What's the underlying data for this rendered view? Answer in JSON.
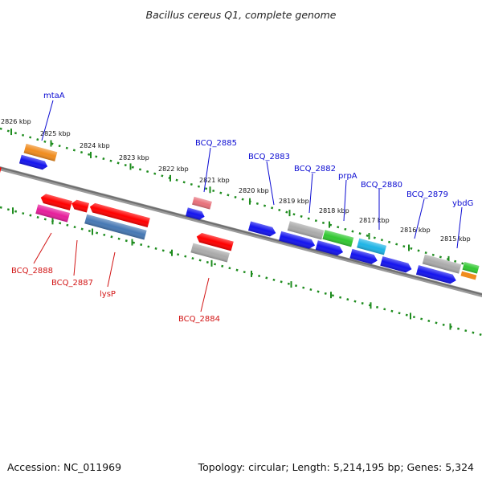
{
  "title": "Bacillus cereus Q1, complete genome",
  "footer": {
    "accession": "Accession: NC_011969",
    "summary": "Topology: circular; Length: 5,214,195 bp; Genes: 5,324"
  },
  "colors": {
    "backbone": "#777777",
    "tick": "#1e8c1e",
    "forward_label": "#0a0ad2",
    "reverse_label": "#d21414"
  },
  "kbp_labels": [
    "2826 kbp",
    "2825 kbp",
    "2824 kbp",
    "2823 kbp",
    "2822 kbp",
    "2821 kbp",
    "2820 kbp",
    "2819 kbp",
    "2818 kbp",
    "2817 kbp",
    "2816 kbp",
    "2815 kbp"
  ],
  "forward_genes": [
    {
      "name": "mtaA",
      "color": "#f08c1e"
    },
    {
      "name": "BCQ_2885",
      "color": "#e8707a"
    },
    {
      "name": "BCQ_2883",
      "color": "#aaaaaa"
    },
    {
      "name": "BCQ_2882",
      "color": "#32c832"
    },
    {
      "name": "prpA",
      "color": "#32c832"
    },
    {
      "name": "BCQ_2880",
      "color": "#1eb4e6"
    },
    {
      "name": "BCQ_2879",
      "color": "#aaaaaa"
    },
    {
      "name": "ybdG",
      "color": "#32c832"
    }
  ],
  "reverse_genes": [
    {
      "name": "BCQ_2888",
      "color": "#e61e9b"
    },
    {
      "name": "BCQ_2887",
      "color": "#ff0000"
    },
    {
      "name": "lysP",
      "color": "#4678b4"
    },
    {
      "name": "BCQ_2884",
      "color": "#aaaaaa"
    }
  ]
}
